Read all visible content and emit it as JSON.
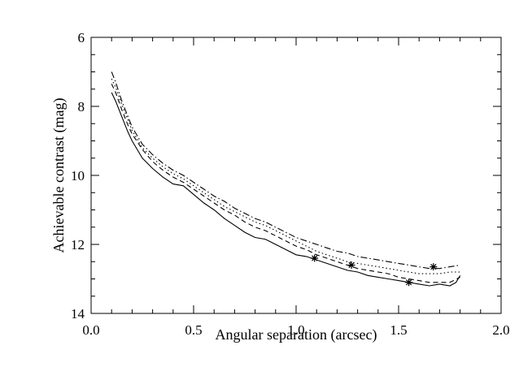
{
  "chart_data": {
    "type": "line",
    "title": "",
    "xlabel": "Angular separation (arcsec)",
    "ylabel": "Achievable contrast (mag)",
    "xlim": [
      0.0,
      2.0
    ],
    "ylim": [
      14,
      6
    ],
    "y_inverted": true,
    "x_ticks": [
      0.0,
      0.5,
      1.0,
      1.5,
      2.0
    ],
    "x_tick_labels": [
      "0.0",
      "0.5",
      "1.0",
      "1.5",
      "2.0"
    ],
    "y_ticks": [
      6,
      8,
      10,
      12,
      14
    ],
    "y_tick_labels": [
      "6",
      "8",
      "10",
      "12",
      "14"
    ],
    "grid": false,
    "legend": "none",
    "series": [
      {
        "style": "solid",
        "color": "#000000",
        "x": [
          0.1,
          0.12,
          0.15,
          0.18,
          0.2,
          0.25,
          0.3,
          0.35,
          0.4,
          0.45,
          0.5,
          0.55,
          0.6,
          0.65,
          0.7,
          0.75,
          0.8,
          0.85,
          0.9,
          0.95,
          1.0,
          1.05,
          1.1,
          1.15,
          1.2,
          1.25,
          1.3,
          1.35,
          1.4,
          1.45,
          1.5,
          1.55,
          1.6,
          1.65,
          1.7,
          1.75,
          1.78,
          1.8
        ],
        "y": [
          7.6,
          7.85,
          8.3,
          8.75,
          9.0,
          9.5,
          9.8,
          10.05,
          10.25,
          10.3,
          10.55,
          10.8,
          11.0,
          11.25,
          11.45,
          11.65,
          11.8,
          11.85,
          12.0,
          12.15,
          12.3,
          12.35,
          12.45,
          12.55,
          12.65,
          12.75,
          12.8,
          12.9,
          12.95,
          13.0,
          13.05,
          13.1,
          13.15,
          13.2,
          13.15,
          13.2,
          13.1,
          12.9
        ]
      },
      {
        "style": "dashed",
        "color": "#000000",
        "x": [
          0.1,
          0.12,
          0.15,
          0.18,
          0.2,
          0.25,
          0.3,
          0.35,
          0.4,
          0.45,
          0.5,
          0.55,
          0.6,
          0.65,
          0.7,
          0.75,
          0.8,
          0.85,
          0.9,
          0.95,
          1.0,
          1.05,
          1.1,
          1.15,
          1.2,
          1.25,
          1.3,
          1.35,
          1.4,
          1.45,
          1.5,
          1.55,
          1.6,
          1.65,
          1.7,
          1.75,
          1.8
        ],
        "y": [
          7.35,
          7.6,
          8.1,
          8.55,
          8.8,
          9.25,
          9.6,
          9.85,
          10.05,
          10.2,
          10.4,
          10.6,
          10.8,
          11.0,
          11.15,
          11.35,
          11.5,
          11.6,
          11.75,
          11.9,
          12.05,
          12.15,
          12.3,
          12.4,
          12.5,
          12.6,
          12.7,
          12.75,
          12.8,
          12.85,
          12.95,
          13.0,
          13.05,
          13.1,
          13.1,
          13.1,
          12.95
        ]
      },
      {
        "style": "dotted",
        "color": "#000000",
        "x": [
          0.1,
          0.12,
          0.15,
          0.18,
          0.2,
          0.25,
          0.3,
          0.35,
          0.4,
          0.45,
          0.5,
          0.55,
          0.6,
          0.65,
          0.7,
          0.75,
          0.8,
          0.85,
          0.9,
          0.95,
          1.0,
          1.05,
          1.1,
          1.15,
          1.2,
          1.25,
          1.3,
          1.35,
          1.4,
          1.45,
          1.5,
          1.55,
          1.6,
          1.65,
          1.7,
          1.75,
          1.8
        ],
        "y": [
          7.2,
          7.45,
          7.95,
          8.4,
          8.7,
          9.2,
          9.5,
          9.75,
          9.95,
          10.1,
          10.3,
          10.5,
          10.7,
          10.9,
          11.05,
          11.2,
          11.35,
          11.45,
          11.6,
          11.75,
          11.9,
          12.05,
          12.2,
          12.3,
          12.4,
          12.5,
          12.55,
          12.6,
          12.65,
          12.7,
          12.75,
          12.8,
          12.85,
          12.85,
          12.85,
          12.8,
          12.8
        ]
      },
      {
        "style": "dash-dot",
        "color": "#000000",
        "x": [
          0.1,
          0.12,
          0.15,
          0.18,
          0.2,
          0.25,
          0.3,
          0.35,
          0.4,
          0.45,
          0.5,
          0.55,
          0.6,
          0.65,
          0.7,
          0.75,
          0.8,
          0.85,
          0.9,
          0.95,
          1.0,
          1.05,
          1.1,
          1.15,
          1.2,
          1.25,
          1.3,
          1.35,
          1.4,
          1.45,
          1.5,
          1.55,
          1.6,
          1.65,
          1.7,
          1.75,
          1.8
        ],
        "y": [
          7.0,
          7.3,
          7.85,
          8.3,
          8.6,
          9.1,
          9.4,
          9.65,
          9.85,
          10.0,
          10.2,
          10.4,
          10.6,
          10.75,
          10.95,
          11.1,
          11.25,
          11.35,
          11.5,
          11.65,
          11.8,
          11.9,
          12.0,
          12.1,
          12.2,
          12.25,
          12.35,
          12.4,
          12.45,
          12.5,
          12.55,
          12.6,
          12.65,
          12.7,
          12.7,
          12.65,
          12.6
        ]
      }
    ],
    "markers": [
      {
        "x": 1.09,
        "y": 12.4,
        "symbol": "asterisk"
      },
      {
        "x": 1.27,
        "y": 12.6,
        "symbol": "asterisk"
      },
      {
        "x": 1.55,
        "y": 13.1,
        "symbol": "asterisk"
      },
      {
        "x": 1.67,
        "y": 12.65,
        "symbol": "asterisk"
      }
    ]
  }
}
